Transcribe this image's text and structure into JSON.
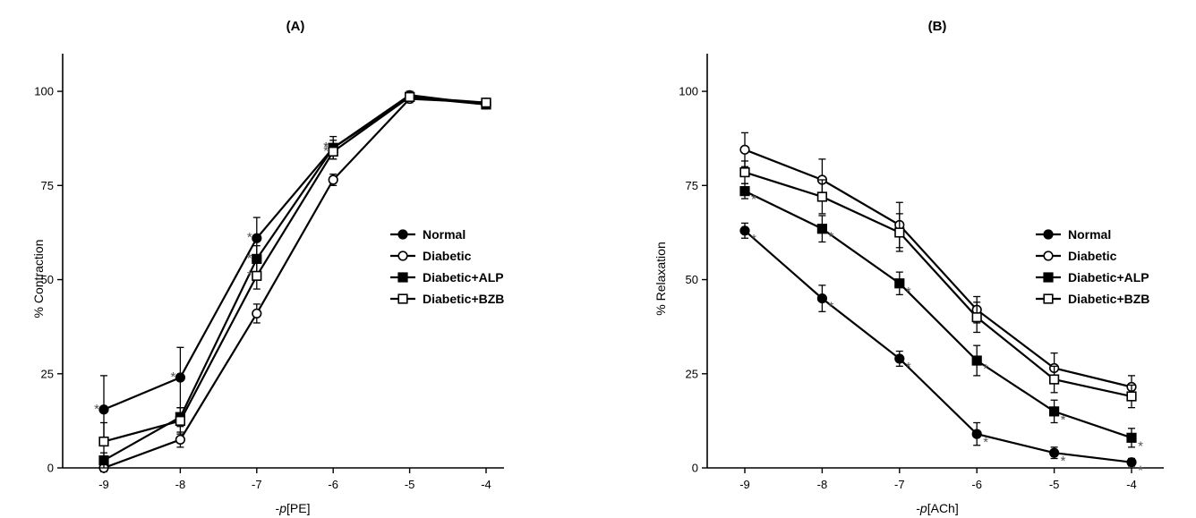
{
  "chart_data": [
    {
      "type": "line",
      "title": "(A)",
      "xlabel_prefix": "-",
      "xlabel_italic": "p",
      "xlabel_suffix": "[PE]",
      "ylabel": "% Contraction",
      "x": [
        -9,
        -8,
        -7,
        -6,
        -5,
        -4
      ],
      "x_ticks": [
        "-9",
        "-8",
        "-7",
        "-6",
        "-5",
        "-4"
      ],
      "y_ticks": [
        "0",
        "25",
        "50",
        "75",
        "100"
      ],
      "ylim": [
        0,
        110
      ],
      "legend_position": "right",
      "series": [
        {
          "name": "Normal",
          "marker": "filled-circle",
          "values": [
            15.5,
            24,
            61,
            85,
            99,
            96.5
          ],
          "err": [
            9,
            8,
            5.5,
            3,
            1,
            1
          ],
          "stars": [
            true,
            true,
            true,
            true,
            false,
            false
          ]
        },
        {
          "name": "Diabetic",
          "marker": "open-circle",
          "values": [
            0,
            7.5,
            41,
            76.5,
            98,
            97
          ],
          "err": [
            1,
            2,
            2.5,
            1.5,
            1,
            1
          ],
          "stars": [
            false,
            false,
            false,
            false,
            false,
            false
          ]
        },
        {
          "name": "Diabetic+ALP",
          "marker": "filled-square",
          "values": [
            2,
            13.5,
            55.5,
            85,
            98.5,
            96.5
          ],
          "err": [
            2,
            2.5,
            3.5,
            2,
            1,
            1
          ],
          "stars": [
            false,
            false,
            true,
            true,
            false,
            false
          ]
        },
        {
          "name": "Diabetic+BZB",
          "marker": "open-square",
          "values": [
            7,
            12.5,
            51,
            84,
            98.5,
            97
          ],
          "err": [
            5,
            3.5,
            3.5,
            2,
            1,
            1
          ],
          "stars": [
            false,
            false,
            true,
            true,
            false,
            false
          ]
        }
      ]
    },
    {
      "type": "line",
      "title": "(B)",
      "xlabel_prefix": "-",
      "xlabel_italic": "p",
      "xlabel_suffix": "[ACh]",
      "ylabel": "% Relaxation",
      "x": [
        -9,
        -8,
        -7,
        -6,
        -5,
        -4
      ],
      "x_ticks": [
        "-9",
        "-8",
        "-7",
        "-6",
        "-5",
        "-4"
      ],
      "y_ticks": [
        "0",
        "25",
        "50",
        "75",
        "100"
      ],
      "ylim": [
        0,
        110
      ],
      "legend_position": "right",
      "series": [
        {
          "name": "Normal",
          "marker": "filled-circle",
          "values": [
            63,
            45,
            29,
            9,
            4,
            1.5
          ],
          "err": [
            2,
            3.5,
            2,
            3,
            1.5,
            1
          ],
          "stars": [
            true,
            true,
            true,
            true,
            true,
            true
          ]
        },
        {
          "name": "Diabetic",
          "marker": "open-circle",
          "values": [
            84.5,
            76.5,
            64.5,
            42,
            26.5,
            21.5
          ],
          "err": [
            4.5,
            5.5,
            6,
            3.5,
            4,
            3
          ],
          "stars": [
            false,
            false,
            false,
            false,
            false,
            false
          ]
        },
        {
          "name": "Diabetic+ALP",
          "marker": "filled-square",
          "values": [
            73.5,
            63.5,
            49,
            28.5,
            15,
            8
          ],
          "err": [
            2,
            3.5,
            3,
            4,
            3,
            2.5
          ],
          "stars": [
            true,
            true,
            true,
            true,
            true,
            true
          ]
        },
        {
          "name": "Diabetic+BZB",
          "marker": "open-square",
          "values": [
            78.5,
            72,
            62.5,
            40,
            23.5,
            19
          ],
          "err": [
            3,
            4.5,
            5,
            4,
            3.5,
            3
          ],
          "stars": [
            false,
            false,
            false,
            false,
            false,
            false
          ]
        }
      ]
    }
  ]
}
